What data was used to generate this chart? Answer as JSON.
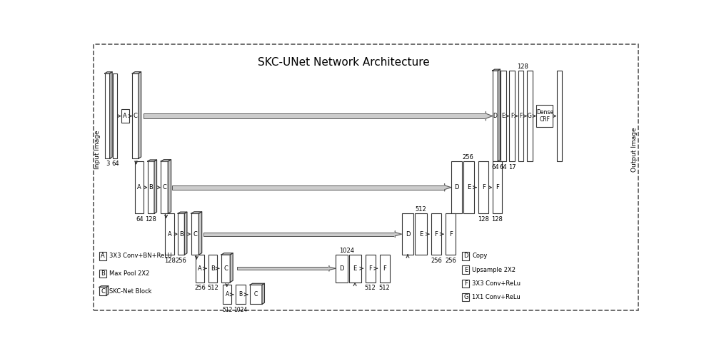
{
  "title": "SKC-UNet Network Architecture",
  "bg_color": "#ffffff",
  "border_color": "#666666",
  "figsize": [
    10.0,
    4.92
  ],
  "dpi": 100,
  "legend_left": [
    [
      "A",
      "3X3 Conv+BN+ReLU"
    ],
    [
      "B",
      "Max Pool 2X2"
    ],
    [
      "C",
      "SKC-Net Block"
    ]
  ],
  "legend_right": [
    [
      "D",
      "Copy"
    ],
    [
      "E",
      "Upsample 2X2"
    ],
    [
      "F",
      "3X3 Conv+ReLu"
    ],
    [
      "G",
      "1X1 Conv+ReLu"
    ]
  ]
}
